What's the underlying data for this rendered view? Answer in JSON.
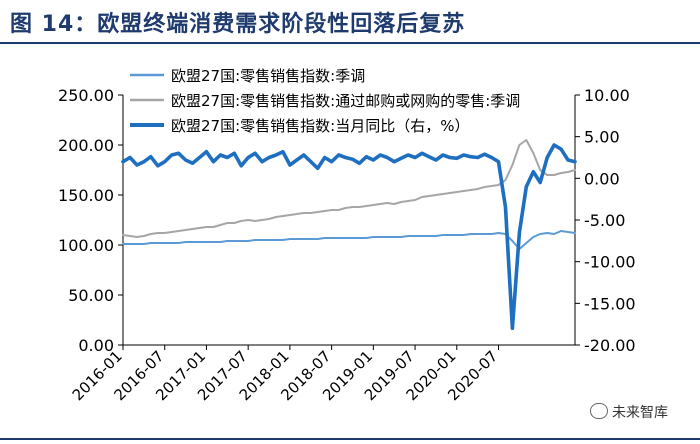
{
  "header": {
    "title": "图 14：欧盟终端消费需求阶段性回落后复苏"
  },
  "watermark": {
    "text": "未来智库",
    "icon": "wechat-icon"
  },
  "colors": {
    "series1": "#5b9bd5",
    "series2": "#a6a6a6",
    "series3": "#1f6fc1",
    "title": "#1f3b6e"
  },
  "chart_data": {
    "type": "line",
    "x_ticks": [
      "2016-01",
      "2016-07",
      "2017-01",
      "2017-07",
      "2018-01",
      "2018-07",
      "2019-01",
      "2019-07",
      "2020-01",
      "2020-07"
    ],
    "ylim_left": [
      0,
      250
    ],
    "ylim_right": [
      -20,
      10
    ],
    "yticks_left": [
      "0.00",
      "50.00",
      "100.00",
      "150.00",
      "200.00",
      "250.00"
    ],
    "yticks_right": [
      "-20.00",
      "-15.00",
      "-10.00",
      "-5.00",
      "0.00",
      "5.00",
      "10.00"
    ],
    "legend_position": "top-left",
    "series": [
      {
        "name": "欧盟27国:零售销售指数:季调",
        "axis": "left",
        "values": [
          101,
          101,
          101,
          101,
          102,
          102,
          102,
          102,
          102,
          103,
          103,
          103,
          103,
          103,
          103,
          104,
          104,
          104,
          104,
          105,
          105,
          105,
          105,
          105,
          106,
          106,
          106,
          106,
          106,
          107,
          107,
          107,
          107,
          107,
          107,
          107,
          108,
          108,
          108,
          108,
          108,
          109,
          109,
          109,
          109,
          109,
          110,
          110,
          110,
          110,
          111,
          111,
          111,
          111,
          112,
          111,
          104,
          96,
          102,
          108,
          111,
          112,
          111,
          114,
          113,
          112
        ]
      },
      {
        "name": "欧盟27国:零售销售指数:通过邮购或网购的零售:季调",
        "axis": "left",
        "values": [
          110,
          109,
          108,
          109,
          111,
          112,
          112,
          113,
          114,
          115,
          116,
          117,
          118,
          118,
          120,
          122,
          122,
          124,
          125,
          124,
          125,
          126,
          128,
          129,
          130,
          131,
          132,
          132,
          133,
          134,
          135,
          135,
          137,
          138,
          138,
          139,
          140,
          141,
          142,
          141,
          143,
          144,
          145,
          148,
          149,
          150,
          151,
          152,
          153,
          154,
          155,
          156,
          158,
          159,
          160,
          165,
          180,
          200,
          205,
          192,
          175,
          170,
          170,
          172,
          173,
          175
        ]
      },
      {
        "name": "欧盟27国:零售销售指数:当月同比（右，%）",
        "axis": "right",
        "values": [
          2.0,
          2.5,
          1.6,
          2.0,
          2.6,
          1.5,
          2.0,
          2.8,
          3.0,
          2.2,
          1.8,
          2.5,
          3.2,
          2.0,
          2.8,
          2.5,
          3.0,
          1.5,
          2.5,
          3.0,
          2.0,
          2.5,
          2.8,
          3.2,
          1.6,
          2.2,
          2.8,
          2.0,
          1.2,
          2.5,
          2.0,
          2.8,
          2.5,
          2.3,
          1.8,
          2.6,
          2.2,
          2.8,
          2.5,
          2.0,
          2.4,
          2.8,
          2.5,
          3.0,
          2.6,
          2.2,
          2.8,
          2.5,
          2.4,
          2.8,
          2.6,
          2.5,
          2.9,
          2.5,
          2.0,
          -3.5,
          -18.0,
          -6.5,
          -1.0,
          0.8,
          -0.5,
          2.5,
          4.0,
          3.5,
          2.2,
          2.0
        ]
      }
    ]
  }
}
